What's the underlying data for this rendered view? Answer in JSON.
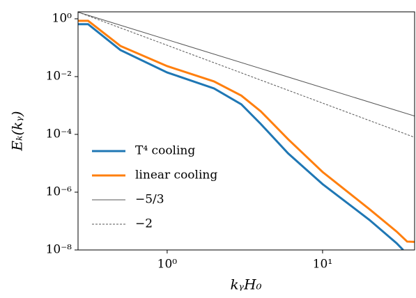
{
  "chart_data": {
    "type": "line",
    "x_label": "kᵧH₀",
    "y_label": "Eₖ(kᵧ)",
    "x_scale": "log",
    "y_scale": "log",
    "xlim": [
      0.267,
      39.1
    ],
    "ylim": [
      1e-08,
      1.74
    ],
    "xticks": [
      {
        "value": 1,
        "label": "10⁰"
      },
      {
        "value": 10,
        "label": "10¹"
      }
    ],
    "yticks": [
      {
        "value": 1e-08,
        "label": "10⁻⁸"
      },
      {
        "value": 1e-06,
        "label": "10⁻⁶"
      },
      {
        "value": 0.0001,
        "label": "10⁻⁴"
      },
      {
        "value": 0.01,
        "label": "10⁻²"
      },
      {
        "value": 1,
        "label": "10⁰"
      }
    ],
    "legend": "lower left",
    "series": [
      {
        "name": "T⁴ cooling",
        "color": "#1f77b4",
        "style": "solid",
        "width": 3,
        "x": [
          0.267,
          0.31,
          0.5,
          1,
          2,
          3,
          4,
          6,
          10,
          20,
          30,
          33
        ],
        "values": [
          0.65,
          0.65,
          0.083,
          0.0139,
          0.0039,
          0.0011,
          0.00023,
          2.2e-05,
          1.9e-06,
          1.1e-07,
          1.7e-08,
          1e-08
        ]
      },
      {
        "name": "linear cooling",
        "color": "#ff7f0e",
        "style": "solid",
        "width": 3,
        "x": [
          0.267,
          0.31,
          0.5,
          1,
          2,
          3,
          4,
          6,
          10,
          20,
          30,
          35,
          39
        ],
        "values": [
          0.85,
          0.85,
          0.115,
          0.023,
          0.0068,
          0.0022,
          0.00063,
          6.8e-05,
          5e-06,
          2.6e-07,
          4.3e-08,
          1.95e-08,
          1.9e-08
        ]
      },
      {
        "name": "−5/3",
        "color": "#555555",
        "style": "solid",
        "width": 1,
        "x": [
          0.267,
          39.1
        ],
        "values": [
          1.7,
          0.00043
        ]
      },
      {
        "name": "−2",
        "color": "#555555",
        "style": "dashed",
        "width": 1,
        "x": [
          0.267,
          39.1
        ],
        "values": [
          1.7,
          7.9e-05
        ]
      }
    ]
  }
}
